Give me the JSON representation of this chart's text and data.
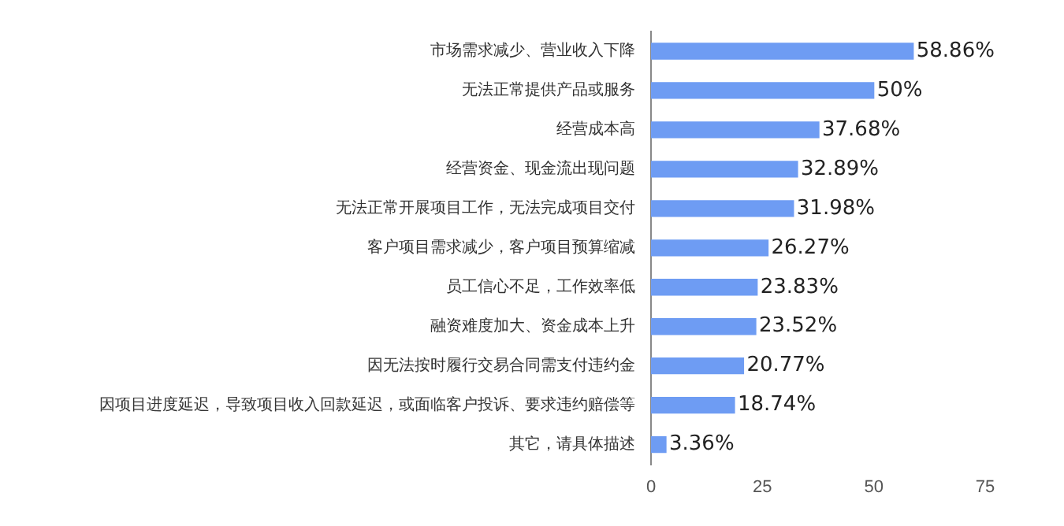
{
  "chart_data": {
    "type": "bar",
    "orientation": "horizontal",
    "categories": [
      "市场需求减少、营业收入下降",
      "无法正常提供产品或服务",
      "经营成本高",
      "经营资金、现金流出现问题",
      "无法正常开展项目工作，无法完成项目交付",
      "客户项目需求减少，客户项目预算缩减",
      "员工信心不足，工作效率低",
      "融资难度加大、资金成本上升",
      "因无法按时履行交易合同需支付违约金",
      "因项目进度延迟，导致项目收入回款延迟，或面临客户投诉、要求违约赔偿等",
      "其它，请具体描述"
    ],
    "values": [
      58.86,
      50,
      37.68,
      32.89,
      31.98,
      26.27,
      23.83,
      23.52,
      20.77,
      18.74,
      3.36
    ],
    "value_labels": [
      "58.86%",
      "50%",
      "37.68%",
      "32.89%",
      "31.98%",
      "26.27%",
      "23.83%",
      "23.52%",
      "20.77%",
      "18.74%",
      "3.36%"
    ],
    "color": "#6e9cf3",
    "xlim": [
      0,
      75
    ],
    "xticks": [
      0,
      25,
      50,
      75
    ],
    "grid": false,
    "legend": false
  }
}
